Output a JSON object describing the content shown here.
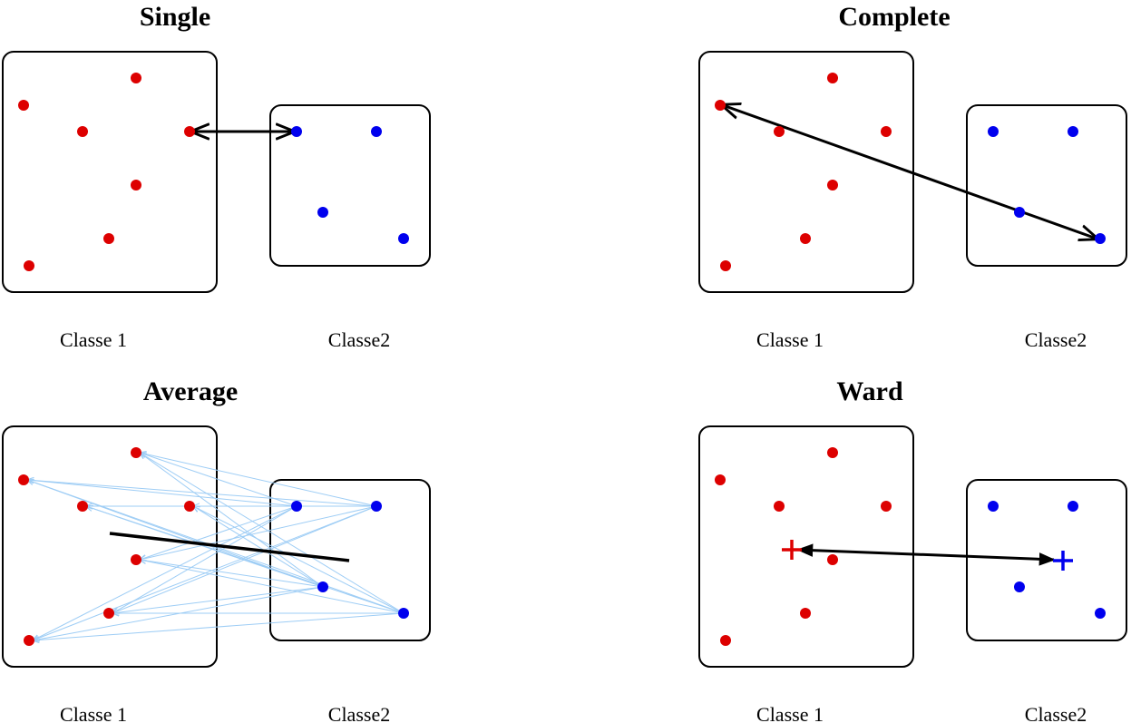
{
  "colors": {
    "class1": "#dd0000",
    "class2": "#0000ee",
    "average_links": "#9ecdf5",
    "link": "#000000"
  },
  "panels": [
    {
      "id": "single",
      "title": "Single",
      "class1_label": "Classe 1",
      "class2_label": "Classe2",
      "method": "single-linkage",
      "marker": "closest pair of points"
    },
    {
      "id": "complete",
      "title": "Complete",
      "class1_label": "Classe 1",
      "class2_label": "Classe2",
      "method": "complete-linkage",
      "marker": "farthest pair of points"
    },
    {
      "id": "average",
      "title": "Average",
      "class1_label": "Classe 1",
      "class2_label": "Classe2",
      "method": "average-linkage",
      "marker": "all pairwise links"
    },
    {
      "id": "ward",
      "title": "Ward",
      "class1_label": "Classe 1",
      "class2_label": "Classe2",
      "method": "ward",
      "marker": "centroids"
    }
  ]
}
